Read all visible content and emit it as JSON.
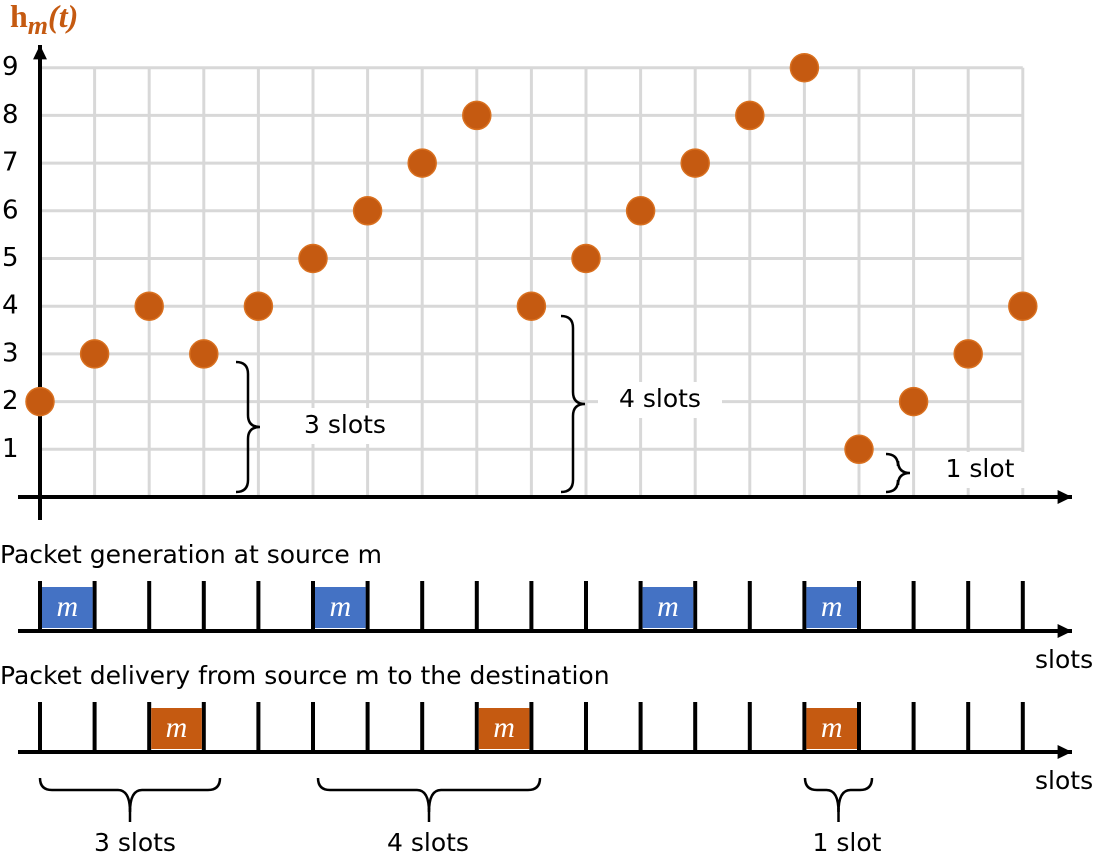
{
  "plot": {
    "y_label": {
      "main": "h",
      "sub": "m",
      "arg": "(t)"
    },
    "yticks": [
      1,
      2,
      3,
      4,
      5,
      6,
      7,
      8,
      9
    ],
    "points": [
      2,
      3,
      4,
      3,
      4,
      5,
      6,
      7,
      8,
      4,
      5,
      6,
      7,
      8,
      9,
      1,
      2,
      3,
      4
    ]
  },
  "annotations": [
    {
      "label": "3 slots"
    },
    {
      "label": "4 slots"
    },
    {
      "label": "1 slot"
    }
  ],
  "generation": {
    "title": "Packet generation at source m",
    "axis_label": "slots",
    "packets": [
      {
        "slot": 0,
        "label": "m"
      },
      {
        "slot": 5,
        "label": "m"
      },
      {
        "slot": 11,
        "label": "m"
      },
      {
        "slot": 14,
        "label": "m"
      }
    ]
  },
  "delivery": {
    "title": "Packet delivery from source m to the destination",
    "axis_label": "slots",
    "packets": [
      {
        "slot": 2,
        "label": "m"
      },
      {
        "slot": 8,
        "label": "m"
      },
      {
        "slot": 14,
        "label": "m"
      }
    ]
  },
  "gaps": [
    {
      "label": "3 slots"
    },
    {
      "label": "4 slots"
    },
    {
      "label": "1 slot"
    }
  ]
}
